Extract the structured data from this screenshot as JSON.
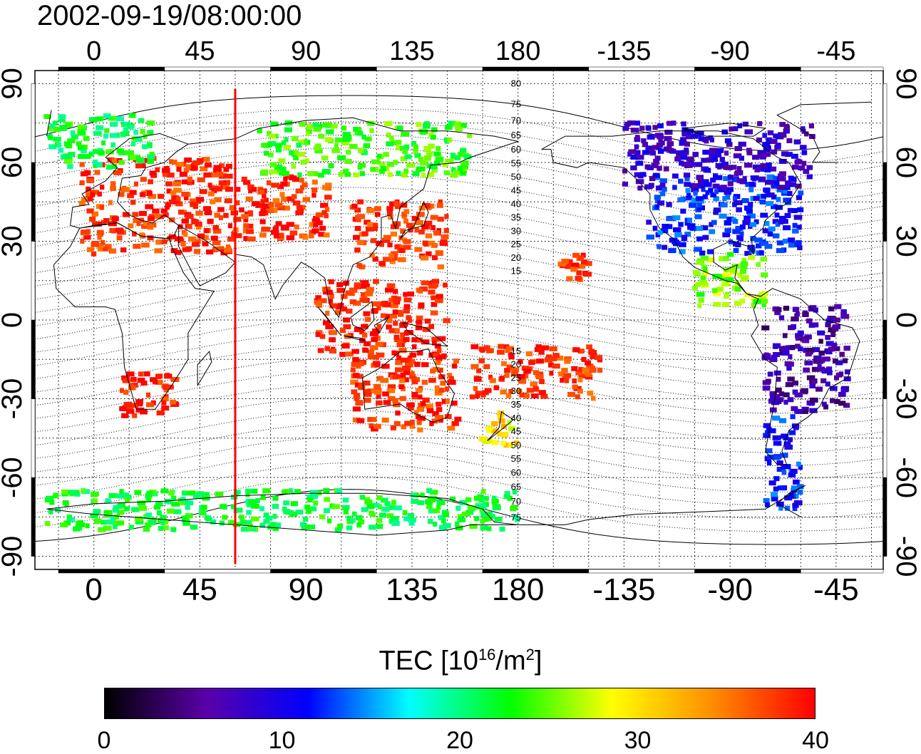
{
  "title": "2002-09-19/08:00:00",
  "map": {
    "type": "world-map-scatter",
    "projection": "equirectangular",
    "lon_range": [
      -25,
      335
    ],
    "lat_range": [
      -95,
      95
    ],
    "lon_ticks": [
      0,
      45,
      90,
      135,
      180,
      -135,
      -90,
      -45
    ],
    "lat_ticks_left": [
      "90",
      "60",
      "30",
      "0",
      "-30",
      "-60",
      "-90"
    ],
    "lat_ticks_right": [
      "90",
      "60",
      "30",
      "0",
      "-30",
      "-60",
      "-90"
    ],
    "lat_tick_values": [
      90,
      60,
      30,
      0,
      -30,
      -60,
      -90
    ],
    "grid": "dotted",
    "meridian_line": {
      "lon": 60,
      "color": "#ff0000"
    },
    "contour_labels_north": [
      "80",
      "75",
      "70",
      "65",
      "60",
      "55",
      "50",
      "45",
      "40",
      "35",
      "30",
      "25",
      "20",
      "15"
    ],
    "contour_labels_south": [
      "15",
      "20",
      "25",
      "30",
      "35",
      "40",
      "45",
      "50",
      "55",
      "60",
      "65",
      "70",
      "75"
    ]
  },
  "colorbar": {
    "label_main": "TEC  [10",
    "label_sup1": "16",
    "label_mid": "/m",
    "label_sup2": "2",
    "label_end": "]",
    "ticks": [
      "0",
      "10",
      "20",
      "30",
      "40"
    ],
    "tick_values": [
      0,
      10,
      20,
      30,
      40
    ],
    "range": [
      0,
      40
    ],
    "colors": [
      "#000000",
      "#5a00a8",
      "#0000ff",
      "#00ffff",
      "#00ff00",
      "#ffff00",
      "#ff8c00",
      "#ff0000"
    ]
  },
  "tec_regions": [
    {
      "name": "europe",
      "lon": [
        -5,
        60
      ],
      "lat": [
        25,
        62
      ],
      "tec": 38
    },
    {
      "name": "north-europe",
      "lon": [
        -20,
        25
      ],
      "lat": [
        58,
        78
      ],
      "tec": 22
    },
    {
      "name": "south-africa",
      "lon": [
        10,
        35
      ],
      "lat": [
        -38,
        -20
      ],
      "tec": 39
    },
    {
      "name": "central-asia",
      "lon": [
        60,
        100
      ],
      "lat": [
        30,
        55
      ],
      "tec": 38
    },
    {
      "name": "east-asia",
      "lon": [
        110,
        150
      ],
      "lat": [
        20,
        45
      ],
      "tec": 38
    },
    {
      "name": "siberia",
      "lon": [
        70,
        160
      ],
      "lat": [
        55,
        75
      ],
      "tec": 24
    },
    {
      "name": "southeast-asia",
      "lon": [
        95,
        150
      ],
      "lat": [
        -15,
        15
      ],
      "tec": 39
    },
    {
      "name": "australia",
      "lon": [
        110,
        155
      ],
      "lat": [
        -42,
        -15
      ],
      "tec": 38
    },
    {
      "name": "new-zealand",
      "lon": [
        165,
        180
      ],
      "lat": [
        -48,
        -35
      ],
      "tec": 30
    },
    {
      "name": "pacific-islands",
      "lon": [
        160,
        215
      ],
      "lat": [
        -30,
        -10
      ],
      "tec": 38
    },
    {
      "name": "hawaii",
      "lon": [
        198,
        210
      ],
      "lat": [
        15,
        25
      ],
      "tec": 38
    },
    {
      "name": "north-america",
      "lon": [
        235,
        300
      ],
      "lat": [
        25,
        55
      ],
      "tec": 12
    },
    {
      "name": "canada",
      "lon": [
        225,
        305
      ],
      "lat": [
        50,
        75
      ],
      "tec": 8
    },
    {
      "name": "central-america",
      "lon": [
        255,
        285
      ],
      "lat": [
        5,
        25
      ],
      "tec": 26
    },
    {
      "name": "south-america",
      "lon": [
        285,
        320
      ],
      "lat": [
        -35,
        5
      ],
      "tec": 6
    },
    {
      "name": "south-america-south",
      "lon": [
        285,
        300
      ],
      "lat": [
        -72,
        -35
      ],
      "tec": 12
    },
    {
      "name": "antarctica",
      "lon": [
        -20,
        180
      ],
      "lat": [
        -80,
        -65
      ],
      "tec": 22
    }
  ]
}
